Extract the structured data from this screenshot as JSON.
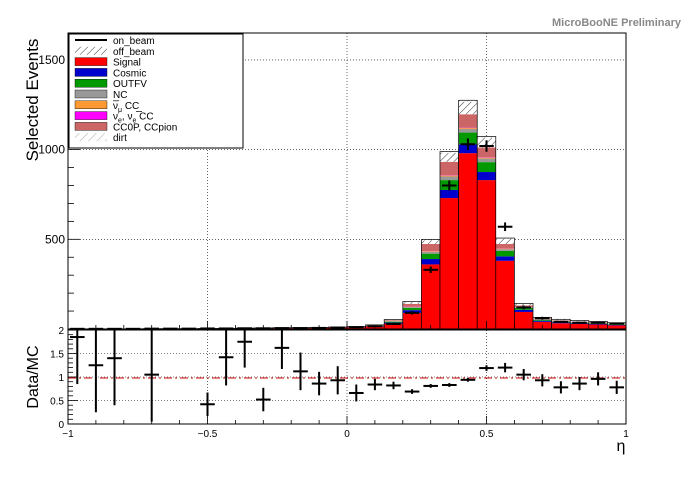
{
  "header": {
    "preliminary": "MicroBooNE Preliminary"
  },
  "colors": {
    "signal": "#ff0000",
    "cosmic": "#0000cc",
    "outfv": "#009900",
    "nc": "#999999",
    "numubar_cc": "#ff9933",
    "nue_cc": "#ff00ff",
    "cc0p_ccpion": "#cc6666",
    "ratio_line": "#cc0000"
  },
  "chart_data": [
    {
      "type": "bar",
      "title": "",
      "xlabel": "",
      "ylabel": "Selected Events",
      "xlim": [
        -1,
        1
      ],
      "ylim": [
        0,
        1650
      ],
      "yticks": [
        500,
        1000,
        1500
      ],
      "grid": true,
      "legend_position": "top-left",
      "legend": [
        {
          "label": "on_beam",
          "style": "line"
        },
        {
          "label": "off_beam",
          "style": "hatch"
        },
        {
          "label": "Signal",
          "color": "#ff0000"
        },
        {
          "label": "Cosmic",
          "color": "#0000cc"
        },
        {
          "label": "OUTFV",
          "color": "#009900"
        },
        {
          "label": "NC",
          "color": "#999999"
        },
        {
          "label_main": "ν",
          "label_bar": "true",
          "label_sub": "μ",
          "label_tail": " CC",
          "color": "#ff9933"
        },
        {
          "label_main": "ν",
          "label_sub": "e",
          "label_mid": ", ",
          "label_main2": "ν",
          "label_bar2": "true",
          "label_sub2": "e",
          "label_tail": " CC",
          "color": "#ff00ff"
        },
        {
          "label": "CC0P, CCpion",
          "color": "#cc6666"
        },
        {
          "label": "dirt",
          "style": "hatch-light"
        }
      ],
      "bin_edges": [
        -1,
        -0.9333,
        -0.8667,
        -0.8,
        -0.7333,
        -0.6667,
        -0.6,
        -0.5333,
        -0.4667,
        -0.4,
        -0.3333,
        -0.2667,
        -0.2,
        -0.1333,
        -0.0667,
        0,
        0.0667,
        0.1333,
        0.2,
        0.2667,
        0.3333,
        0.4,
        0.4667,
        0.5333,
        0.6,
        0.6667,
        0.7333,
        0.8,
        0.8667,
        0.9333,
        1
      ],
      "series": [
        {
          "name": "Signal",
          "values": [
            1,
            1,
            1,
            1,
            2,
            2,
            2,
            3,
            3,
            4,
            4,
            5,
            5,
            6,
            8,
            10,
            15,
            30,
            90,
            360,
            730,
            980,
            830,
            380,
            95,
            40,
            32,
            28,
            25,
            20
          ]
        },
        {
          "name": "Cosmic",
          "values": [
            0,
            0,
            0,
            0,
            0,
            0,
            0,
            0,
            0,
            1,
            1,
            1,
            1,
            1,
            1,
            2,
            3,
            6,
            15,
            30,
            45,
            50,
            45,
            25,
            12,
            6,
            5,
            4,
            4,
            3
          ]
        },
        {
          "name": "OUTFV",
          "values": [
            0,
            0,
            0,
            0,
            0,
            0,
            0,
            0,
            0,
            0,
            1,
            1,
            1,
            1,
            1,
            1,
            2,
            5,
            12,
            30,
            55,
            65,
            55,
            30,
            10,
            5,
            4,
            3,
            3,
            3
          ]
        },
        {
          "name": "NC",
          "values": [
            0,
            0,
            0,
            0,
            0,
            0,
            0,
            0,
            0,
            0,
            0,
            0,
            0,
            0,
            0,
            0,
            0,
            2,
            5,
            10,
            20,
            20,
            20,
            10,
            4,
            2,
            2,
            2,
            1,
            1
          ]
        },
        {
          "name": "νμbar CC",
          "values": [
            0,
            0,
            0,
            0,
            0,
            0,
            0,
            0,
            0,
            0,
            0,
            0,
            0,
            0,
            0,
            0,
            0,
            1,
            2,
            3,
            5,
            5,
            5,
            3,
            1,
            1,
            1,
            1,
            1,
            0
          ]
        },
        {
          "name": "νe, νebar CC",
          "values": [
            0,
            0,
            0,
            0,
            0,
            0,
            0,
            0,
            0,
            0,
            0,
            0,
            0,
            0,
            0,
            0,
            0,
            0,
            1,
            1,
            2,
            2,
            2,
            1,
            1,
            0,
            0,
            0,
            0,
            0
          ]
        },
        {
          "name": "CC0P, CCpion",
          "values": [
            0,
            0,
            0,
            0,
            0,
            0,
            0,
            0,
            0,
            0,
            0,
            0,
            1,
            1,
            1,
            1,
            2,
            5,
            15,
            40,
            75,
            75,
            55,
            25,
            8,
            5,
            4,
            3,
            3,
            3
          ]
        },
        {
          "name": "off_beam",
          "values": [
            0,
            0,
            0,
            0,
            0,
            0,
            0,
            0,
            0,
            0,
            0,
            0,
            0,
            0,
            0,
            0,
            1,
            3,
            10,
            20,
            50,
            70,
            55,
            30,
            10,
            5,
            5,
            5,
            4,
            4
          ]
        },
        {
          "name": "dirt",
          "values": [
            0,
            0,
            0,
            0,
            0,
            0,
            0,
            0,
            0,
            0,
            0,
            0,
            0,
            0,
            0,
            0,
            0,
            1,
            3,
            5,
            7,
            8,
            6,
            3,
            2,
            1,
            1,
            1,
            1,
            1
          ]
        }
      ],
      "data_points": {
        "name": "on_beam",
        "y": [
          1,
          1,
          1,
          1,
          2,
          2,
          2,
          3,
          3,
          4,
          4,
          5,
          5,
          6,
          8,
          10,
          15,
          28,
          90,
          330,
          800,
          1030,
          1020,
          570,
          120,
          60,
          40,
          35,
          35,
          30
        ],
        "yerr": [
          1,
          1,
          1,
          1,
          1.4,
          1.4,
          1.4,
          1.7,
          1.7,
          2,
          2,
          2.2,
          2.2,
          2.4,
          2.8,
          3.2,
          3.9,
          5.3,
          9.5,
          18,
          28,
          32,
          32,
          24,
          11,
          8,
          6,
          6,
          6,
          5
        ]
      }
    },
    {
      "type": "scatter",
      "title": "",
      "xlabel": "η",
      "ylabel": "Data/MC",
      "xlim": [
        -1,
        1
      ],
      "ylim": [
        0,
        2
      ],
      "xticks": [
        -1,
        -0.5,
        0,
        0.5,
        1
      ],
      "xtick_labels": [
        "−1",
        "−0.5",
        "0",
        "0.5",
        "1"
      ],
      "yticks": [
        0,
        0.5,
        1,
        1.5,
        2
      ],
      "ytick_labels": [
        "0",
        "0.5",
        "1",
        "1.5",
        "2"
      ],
      "grid": true,
      "reference_line": 1,
      "points": [
        {
          "x": -0.9667,
          "y": 1.85,
          "yerr": 1.0
        },
        {
          "x": -0.9,
          "y": 1.25,
          "yerr": 1.0
        },
        {
          "x": -0.8333,
          "y": 1.4,
          "yerr": 1.0
        },
        {
          "x": -0.7,
          "y": 1.05,
          "yerr": 1.0
        },
        {
          "x": -0.5,
          "y": 0.42,
          "yerr": 0.25
        },
        {
          "x": -0.4333,
          "y": 1.42,
          "yerr": 0.6
        },
        {
          "x": -0.3667,
          "y": 1.75,
          "yerr": 0.55
        },
        {
          "x": -0.3,
          "y": 0.52,
          "yerr": 0.25
        },
        {
          "x": -0.2333,
          "y": 1.62,
          "yerr": 0.45
        },
        {
          "x": -0.1667,
          "y": 1.12,
          "yerr": 0.4
        },
        {
          "x": -0.1,
          "y": 0.86,
          "yerr": 0.25
        },
        {
          "x": -0.0333,
          "y": 0.93,
          "yerr": 0.3
        },
        {
          "x": 0.0333,
          "y": 0.66,
          "yerr": 0.18
        },
        {
          "x": 0.1,
          "y": 0.84,
          "yerr": 0.12
        },
        {
          "x": 0.1667,
          "y": 0.82,
          "yerr": 0.08
        },
        {
          "x": 0.2333,
          "y": 0.69,
          "yerr": 0.05
        },
        {
          "x": 0.3,
          "y": 0.81,
          "yerr": 0.04
        },
        {
          "x": 0.3667,
          "y": 0.83,
          "yerr": 0.04
        },
        {
          "x": 0.4333,
          "y": 0.94,
          "yerr": 0.04
        },
        {
          "x": 0.5,
          "y": 1.19,
          "yerr": 0.06
        },
        {
          "x": 0.5667,
          "y": 1.2,
          "yerr": 0.1
        },
        {
          "x": 0.6333,
          "y": 1.05,
          "yerr": 0.12
        },
        {
          "x": 0.7,
          "y": 0.93,
          "yerr": 0.13
        },
        {
          "x": 0.7667,
          "y": 0.78,
          "yerr": 0.13
        },
        {
          "x": 0.8333,
          "y": 0.86,
          "yerr": 0.14
        },
        {
          "x": 0.9,
          "y": 0.96,
          "yerr": 0.14
        },
        {
          "x": 0.9667,
          "y": 0.78,
          "yerr": 0.14
        }
      ]
    }
  ]
}
